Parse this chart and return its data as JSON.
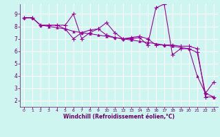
{
  "background_color": "#cff5f0",
  "grid_color": "#ffffff",
  "line_color": "#990099",
  "marker_color": "#990099",
  "xlabel": "Windchill (Refroidissement éolien,°C)",
  "xlabel_color": "#660066",
  "tick_color": "#660066",
  "xlim": [
    -0.5,
    23.5
  ],
  "ylim": [
    1.5,
    9.8
  ],
  "yticks": [
    2,
    3,
    4,
    5,
    6,
    7,
    8,
    9
  ],
  "xticks": [
    0,
    1,
    2,
    3,
    4,
    5,
    6,
    7,
    8,
    9,
    10,
    11,
    12,
    13,
    14,
    15,
    16,
    17,
    18,
    19,
    20,
    21,
    22,
    23
  ],
  "series1_x": [
    0,
    1,
    2,
    3,
    4,
    5,
    6,
    7,
    8,
    9,
    10,
    11,
    12,
    13,
    14,
    15,
    16,
    17,
    18,
    19,
    20,
    21,
    22,
    23
  ],
  "series1_y": [
    8.7,
    8.7,
    8.1,
    8.1,
    8.1,
    8.1,
    9.0,
    7.0,
    7.5,
    7.8,
    7.3,
    7.1,
    7.0,
    7.0,
    7.1,
    6.5,
    9.5,
    9.8,
    5.7,
    6.2,
    6.2,
    5.9,
    2.6,
    3.5
  ],
  "series2_x": [
    0,
    1,
    2,
    3,
    4,
    5,
    6,
    7,
    8,
    9,
    10,
    11,
    12,
    13,
    14,
    15,
    16,
    17,
    18,
    19,
    20,
    21,
    22,
    23
  ],
  "series2_y": [
    8.7,
    8.7,
    8.1,
    8.1,
    8.1,
    7.8,
    7.0,
    7.5,
    7.7,
    7.8,
    8.3,
    7.5,
    7.0,
    7.1,
    7.2,
    7.0,
    6.5,
    6.5,
    6.5,
    6.4,
    6.4,
    6.2,
    2.3,
    2.3
  ],
  "series3_x": [
    0,
    1,
    2,
    3,
    4,
    5,
    6,
    7,
    8,
    9,
    10,
    11,
    12,
    13,
    14,
    15,
    16,
    17,
    18,
    19,
    20,
    21,
    22,
    23
  ],
  "series3_y": [
    8.7,
    8.7,
    8.1,
    8.0,
    7.9,
    7.8,
    7.6,
    7.5,
    7.4,
    7.3,
    7.2,
    7.1,
    7.0,
    6.9,
    6.8,
    6.7,
    6.6,
    6.5,
    6.4,
    6.3,
    6.2,
    4.0,
    2.6,
    2.3
  ]
}
